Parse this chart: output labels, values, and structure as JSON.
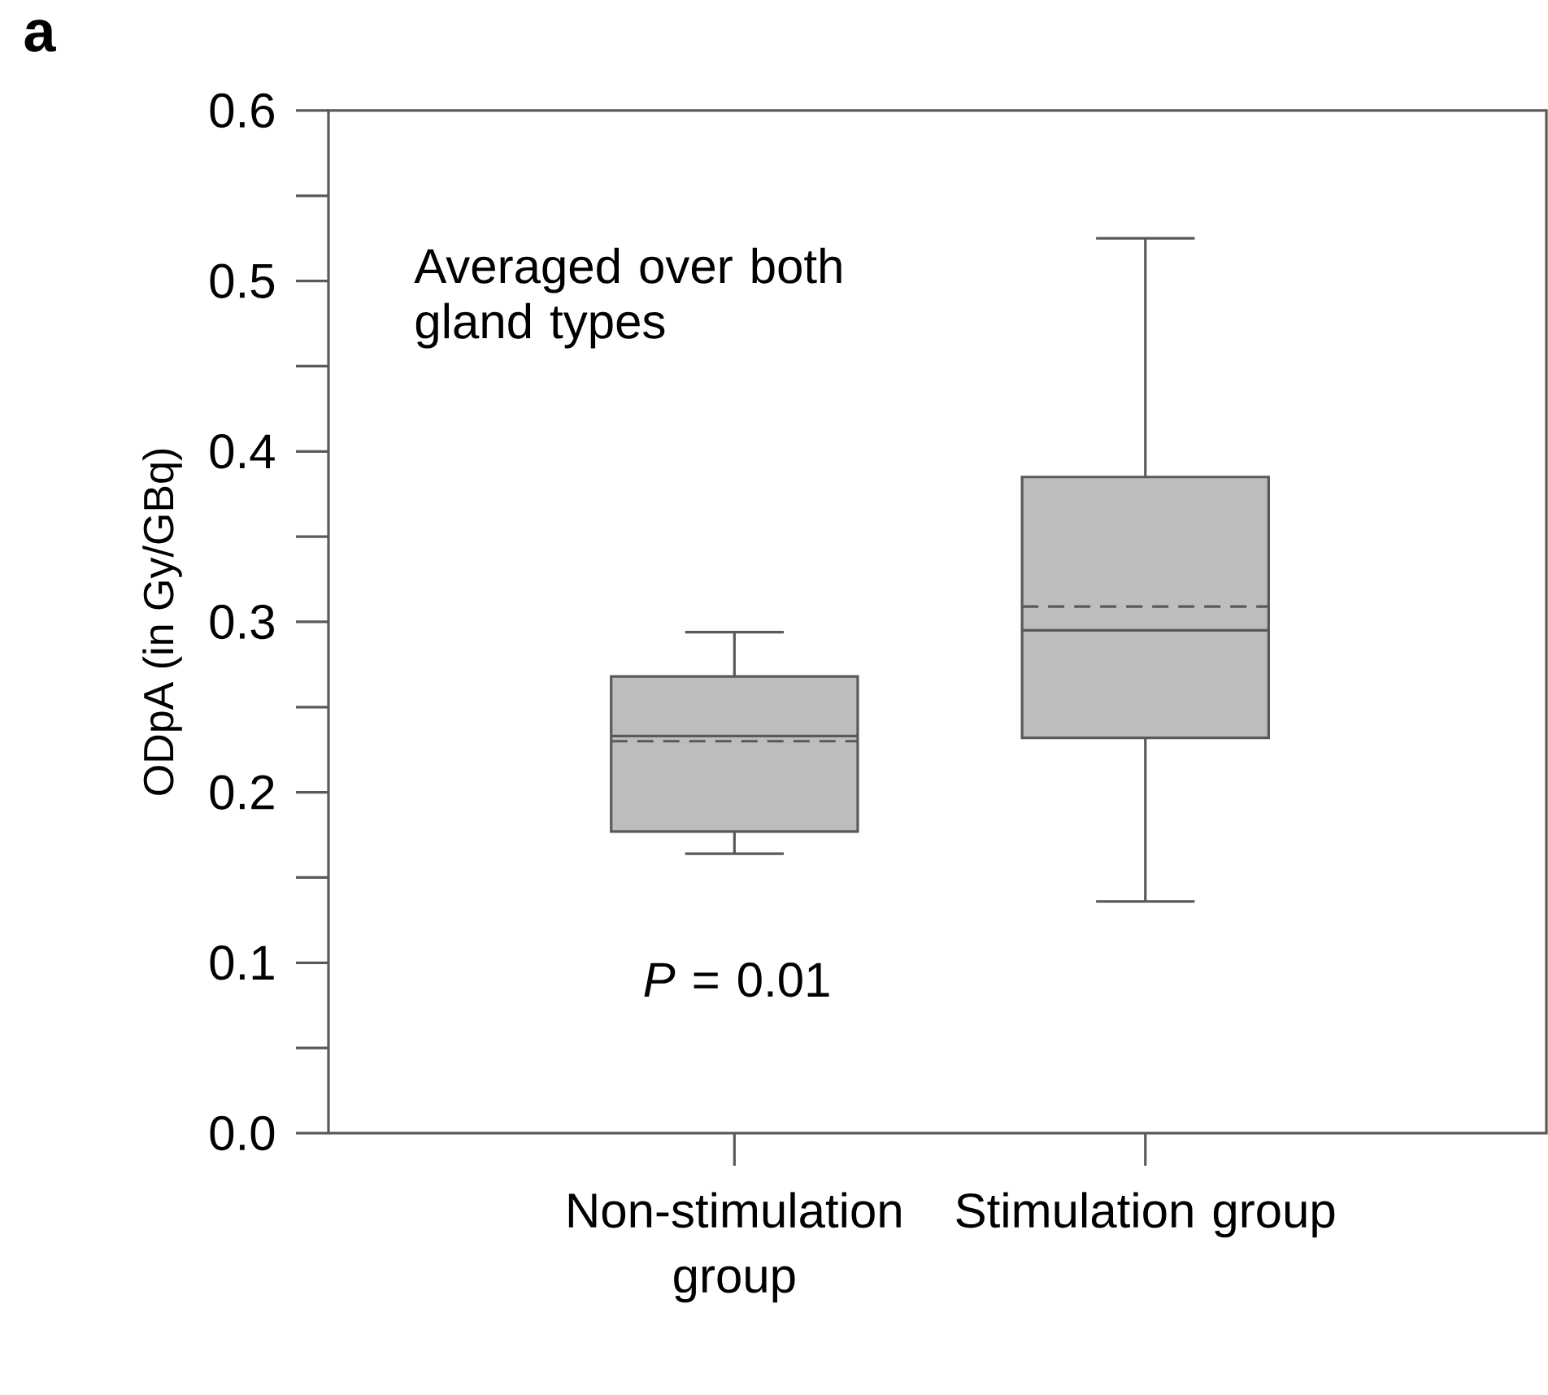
{
  "chart_data": {
    "type": "box",
    "categories": [
      "Non-stimulation group",
      "Stimulation group"
    ],
    "series": [
      {
        "color": "#bdbdbd",
        "boxes": [
          {
            "low": 0.164,
            "q1": 0.177,
            "median": 0.233,
            "q3": 0.268,
            "high": 0.294,
            "mean": 0.23
          },
          {
            "low": 0.136,
            "q1": 0.232,
            "median": 0.295,
            "q3": 0.385,
            "high": 0.525,
            "mean": 0.309
          }
        ]
      }
    ],
    "ylabel": "ODpA  (in Gy/GBq)",
    "ylim": [
      0,
      0.6
    ],
    "yticks": [
      {
        "value": 0,
        "label": "0.0"
      },
      {
        "value": 0.1,
        "label": "0.1"
      },
      {
        "value": 0.2,
        "label": "0.2"
      },
      {
        "value": 0.3,
        "label": "0.3"
      },
      {
        "value": 0.4,
        "label": "0.4"
      },
      {
        "value": 0.5,
        "label": "0.5"
      },
      {
        "value": 0.6,
        "label": "0.6"
      }
    ],
    "annotations": [
      "a",
      "Averaged over both gland types",
      "*P* = 0.01"
    ]
  }
}
